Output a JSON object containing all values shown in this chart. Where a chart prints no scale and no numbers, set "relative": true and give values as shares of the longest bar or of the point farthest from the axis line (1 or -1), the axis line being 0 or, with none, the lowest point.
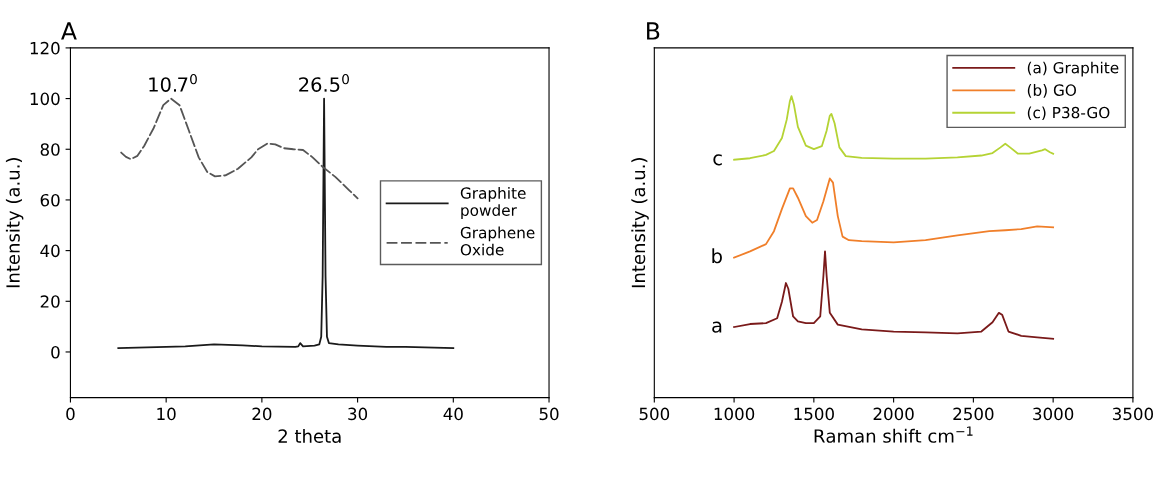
{
  "chart_data": [
    {
      "type": "line",
      "title": "A",
      "xlabel": "2 theta",
      "ylabel": "Intensity (a.u.)",
      "xlim": [
        0,
        50
      ],
      "ylim": [
        -18,
        120
      ],
      "xticks": [
        0,
        10,
        20,
        30,
        40,
        50
      ],
      "yticks": [
        0,
        20,
        40,
        60,
        80,
        100,
        120
      ],
      "grid": false,
      "legend": "center right",
      "marker": "none",
      "series": [
        {
          "name": "Graphite\npowder",
          "color": "#1a1a1a",
          "line_style": "solid",
          "x": [
            5,
            8,
            10,
            12,
            15,
            18,
            20,
            23.5,
            23.8,
            24,
            24.3,
            25.5,
            26,
            26.2,
            26.35,
            26.5,
            26.65,
            26.8,
            27,
            28,
            30,
            33,
            35,
            38,
            40
          ],
          "values": [
            1.5,
            1.8,
            2,
            2.2,
            3,
            2.6,
            2.2,
            2,
            2.2,
            3.5,
            2.2,
            2.5,
            3,
            6,
            30,
            100,
            30,
            6,
            3.5,
            3,
            2.5,
            2,
            2,
            1.7,
            1.5
          ]
        },
        {
          "name": "Graphene\nOxide",
          "color": "#555555",
          "line_style": "dashed",
          "x": [
            5.3,
            5.8,
            6.3,
            7.0,
            7.7,
            8.7,
            9.7,
            10.5,
            11.4,
            12.4,
            13.4,
            14.3,
            15.1,
            16.2,
            17.5,
            18.9,
            19.6,
            20.6,
            21.4,
            22.3,
            23.3,
            24.3,
            25.3,
            26.4,
            27.7,
            29.1,
            30.0
          ],
          "values": [
            78.7,
            77.0,
            76.1,
            77.4,
            81.3,
            88.4,
            97.4,
            100,
            97.4,
            87.1,
            76.8,
            71.0,
            69.3,
            69.7,
            72.3,
            76.8,
            80.0,
            82.3,
            81.9,
            80.4,
            80.0,
            79.7,
            76.8,
            72.9,
            69.0,
            63.9,
            60.6
          ]
        }
      ],
      "annotations": [
        {
          "text": "10.7$^{0}$",
          "x": 10.7,
          "y": 100
        },
        {
          "text": "26.5$^{0}$",
          "x": 26.5,
          "y": 100
        }
      ]
    },
    {
      "type": "line",
      "title": "B",
      "xlabel": "Raman shift cm$^{−1}$",
      "ylabel": "Intensity (a.u.)",
      "xlim": [
        500,
        3500
      ],
      "xticks": [
        500,
        1000,
        1500,
        2000,
        2500,
        3000,
        3500
      ],
      "relative": true,
      "grid": false,
      "legend": "top right",
      "marker": "none",
      "series": [
        {
          "name": "(a) Graphite",
          "color": "#7a1a1a",
          "line_style": "solid",
          "x": [
            1000,
            1100,
            1200,
            1270,
            1300,
            1325,
            1340,
            1370,
            1400,
            1450,
            1500,
            1540,
            1560,
            1570,
            1580,
            1600,
            1650,
            1800,
            2000,
            2200,
            2400,
            2550,
            2620,
            2660,
            2680,
            2720,
            2800,
            2900,
            3000
          ],
          "values": [
            0.234,
            0.244,
            0.247,
            0.263,
            0.318,
            0.38,
            0.361,
            0.269,
            0.253,
            0.247,
            0.247,
            0.269,
            0.404,
            0.485,
            0.404,
            0.281,
            0.242,
            0.226,
            0.219,
            0.216,
            0.213,
            0.219,
            0.25,
            0.281,
            0.275,
            0.219,
            0.205,
            0.2,
            0.195
          ]
        },
        {
          "name": "(b) GO",
          "color": "#f07f2a",
          "line_style": "solid",
          "x": [
            1000,
            1100,
            1200,
            1250,
            1300,
            1350,
            1370,
            1400,
            1450,
            1490,
            1520,
            1560,
            1600,
            1620,
            1650,
            1680,
            1720,
            1800,
            2000,
            2200,
            2400,
            2600,
            2700,
            2800,
            2900,
            3000
          ],
          "values": [
            0.464,
            0.485,
            0.509,
            0.552,
            0.626,
            0.694,
            0.694,
            0.663,
            0.602,
            0.58,
            0.589,
            0.651,
            0.727,
            0.713,
            0.602,
            0.534,
            0.522,
            0.519,
            0.515,
            0.522,
            0.538,
            0.552,
            0.555,
            0.559,
            0.568,
            0.565
          ]
        },
        {
          "name": "(c) P38-GO",
          "color": "#b5d334",
          "line_style": "solid",
          "x": [
            1000,
            1100,
            1200,
            1250,
            1300,
            1330,
            1350,
            1360,
            1375,
            1400,
            1450,
            1500,
            1550,
            1580,
            1600,
            1610,
            1630,
            1660,
            1700,
            1800,
            2000,
            2200,
            2400,
            2550,
            2620,
            2670,
            2700,
            2730,
            2780,
            2850,
            2930,
            2950,
            2980,
            3000
          ],
          "values": [
            0.789,
            0.794,
            0.805,
            0.818,
            0.861,
            0.922,
            0.984,
            1,
            0.972,
            0.898,
            0.836,
            0.824,
            0.834,
            0.885,
            0.935,
            0.941,
            0.91,
            0.83,
            0.801,
            0.795,
            0.793,
            0.793,
            0.797,
            0.803,
            0.811,
            0.83,
            0.842,
            0.83,
            0.809,
            0.809,
            0.82,
            0.824,
            0.814,
            0.809
          ]
        }
      ],
      "annotations": [
        "a",
        "b",
        "c"
      ]
    }
  ]
}
